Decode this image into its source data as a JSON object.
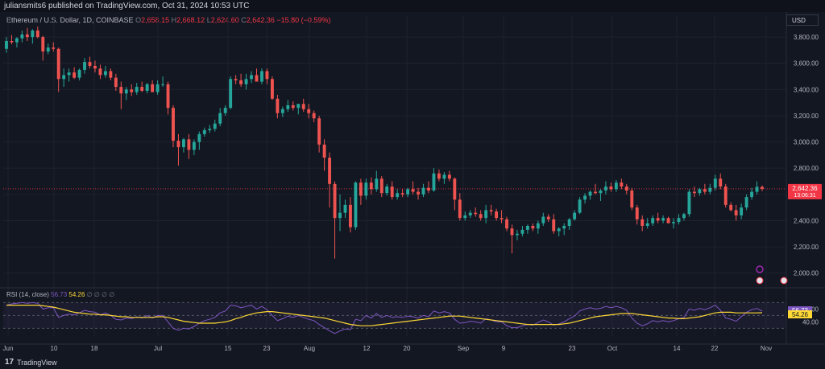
{
  "header": {
    "published": "juliansmits6 published on TradingView.com, Oct 31, 2024 10:53 UTC"
  },
  "legend": {
    "symbol": "Ethereum / U.S. Dollar, 1D, COINBASE",
    "o_label": "O",
    "o_value": "2,658.15",
    "h_label": "H",
    "h_value": "2,668.12",
    "l_label": "L",
    "l_value": "2,624.60",
    "c_label": "C",
    "c_value": "2,642.36",
    "change": "−15.80 (−0.59%)"
  },
  "currency": "USD",
  "price_tag": {
    "price": "2,642.36",
    "countdown": "13:06:31"
  },
  "rsi_tags": {
    "rsi": "56.73",
    "ma": "54.26"
  },
  "rsi_legend": {
    "title": "RSI (14, close)",
    "rsi_value": "56.73",
    "ma_value": "54.26",
    "placeholders": "∅ ∅ ∅ ∅"
  },
  "footer": {
    "brand": "TradingView"
  },
  "colors": {
    "bull": "#26a69a",
    "bear": "#ef5350",
    "rsi": "#7e57c2",
    "rsi_ma": "#fdd835",
    "grid": "#1e222d",
    "bg": "#131722",
    "price_line": "#f23645"
  },
  "chart_data": [
    {
      "type": "candlestick",
      "title": "Ethereum / U.S. Dollar, 1D, COINBASE",
      "y_ticks": [
        "3,800.00",
        "3,600.00",
        "3,400.00",
        "3,200.00",
        "3,000.00",
        "2,800.00",
        "2,600.00",
        "2,400.00",
        "2,200.00",
        "2,000.00"
      ],
      "ylim": [
        1900,
        3960
      ],
      "x_ticks": [
        "Jun",
        "10",
        "18",
        "Jul",
        "15",
        "23",
        "Aug",
        "12",
        "20",
        "Sep",
        "9",
        "23",
        "Oct",
        "14",
        "22",
        "Nov"
      ],
      "last_price": 2642.36,
      "candles": [
        [
          3710,
          3800,
          3680,
          3770
        ],
        [
          3770,
          3815,
          3745,
          3760
        ],
        [
          3760,
          3800,
          3720,
          3790
        ],
        [
          3790,
          3850,
          3760,
          3820
        ],
        [
          3820,
          3870,
          3770,
          3800
        ],
        [
          3800,
          3860,
          3750,
          3850
        ],
        [
          3850,
          3880,
          3790,
          3800
        ],
        [
          3800,
          3810,
          3620,
          3690
        ],
        [
          3690,
          3750,
          3670,
          3720
        ],
        [
          3720,
          3760,
          3690,
          3710
        ],
        [
          3710,
          3720,
          3380,
          3480
        ],
        [
          3480,
          3560,
          3420,
          3510
        ],
        [
          3510,
          3560,
          3460,
          3530
        ],
        [
          3530,
          3570,
          3480,
          3490
        ],
        [
          3490,
          3560,
          3470,
          3550
        ],
        [
          3550,
          3640,
          3520,
          3610
        ],
        [
          3610,
          3650,
          3560,
          3580
        ],
        [
          3580,
          3620,
          3530,
          3560
        ],
        [
          3560,
          3590,
          3480,
          3510
        ],
        [
          3510,
          3580,
          3490,
          3540
        ],
        [
          3540,
          3560,
          3470,
          3490
        ],
        [
          3490,
          3520,
          3390,
          3420
        ],
        [
          3420,
          3460,
          3250,
          3370
        ],
        [
          3370,
          3420,
          3320,
          3400
        ],
        [
          3400,
          3440,
          3350,
          3380
        ],
        [
          3380,
          3450,
          3360,
          3420
        ],
        [
          3420,
          3460,
          3380,
          3390
        ],
        [
          3390,
          3450,
          3370,
          3440
        ],
        [
          3440,
          3470,
          3400,
          3380
        ],
        [
          3380,
          3470,
          3360,
          3440
        ],
        [
          3440,
          3500,
          3420,
          3440
        ],
        [
          3440,
          3460,
          3210,
          3260
        ],
        [
          3260,
          3280,
          2960,
          3010
        ],
        [
          3010,
          3060,
          2820,
          2960
        ],
        [
          2960,
          3030,
          2920,
          3020
        ],
        [
          3020,
          3060,
          2870,
          2940
        ],
        [
          2940,
          3020,
          2900,
          3000
        ],
        [
          3000,
          3080,
          2940,
          3060
        ],
        [
          3060,
          3110,
          3040,
          3090
        ],
        [
          3090,
          3130,
          3070,
          3100
        ],
        [
          3100,
          3170,
          3080,
          3140
        ],
        [
          3140,
          3260,
          3120,
          3220
        ],
        [
          3220,
          3280,
          3200,
          3260
        ],
        [
          3260,
          3500,
          3250,
          3480
        ],
        [
          3480,
          3510,
          3440,
          3470
        ],
        [
          3470,
          3520,
          3420,
          3440
        ],
        [
          3440,
          3520,
          3400,
          3480
        ],
        [
          3480,
          3540,
          3450,
          3510
        ],
        [
          3510,
          3560,
          3480,
          3460
        ],
        [
          3460,
          3560,
          3440,
          3540
        ],
        [
          3540,
          3560,
          3440,
          3480
        ],
        [
          3480,
          3500,
          3320,
          3330
        ],
        [
          3330,
          3360,
          3180,
          3220
        ],
        [
          3220,
          3270,
          3190,
          3250
        ],
        [
          3250,
          3320,
          3230,
          3280
        ],
        [
          3280,
          3310,
          3240,
          3260
        ],
        [
          3260,
          3290,
          3210,
          3290
        ],
        [
          3290,
          3330,
          3230,
          3250
        ],
        [
          3250,
          3290,
          3180,
          3220
        ],
        [
          3220,
          3240,
          3150,
          3180
        ],
        [
          3180,
          3200,
          2920,
          2980
        ],
        [
          2980,
          3020,
          2780,
          2880
        ],
        [
          2880,
          2920,
          2500,
          2680
        ],
        [
          2680,
          2700,
          2110,
          2420
        ],
        [
          2420,
          2600,
          2320,
          2460
        ],
        [
          2460,
          2560,
          2420,
          2520
        ],
        [
          2520,
          2580,
          2310,
          2350
        ],
        [
          2350,
          2700,
          2330,
          2690
        ],
        [
          2690,
          2720,
          2520,
          2590
        ],
        [
          2590,
          2720,
          2560,
          2690
        ],
        [
          2690,
          2730,
          2600,
          2640
        ],
        [
          2640,
          2780,
          2620,
          2720
        ],
        [
          2720,
          2740,
          2580,
          2610
        ],
        [
          2610,
          2680,
          2590,
          2660
        ],
        [
          2660,
          2700,
          2560,
          2580
        ],
        [
          2580,
          2640,
          2560,
          2610
        ],
        [
          2610,
          2640,
          2580,
          2600
        ],
        [
          2600,
          2650,
          2580,
          2640
        ],
        [
          2640,
          2700,
          2600,
          2620
        ],
        [
          2620,
          2650,
          2560,
          2600
        ],
        [
          2600,
          2680,
          2580,
          2650
        ],
        [
          2650,
          2700,
          2610,
          2630
        ],
        [
          2630,
          2800,
          2620,
          2760
        ],
        [
          2760,
          2790,
          2700,
          2720
        ],
        [
          2720,
          2770,
          2680,
          2750
        ],
        [
          2750,
          2780,
          2700,
          2720
        ],
        [
          2720,
          2730,
          2480,
          2560
        ],
        [
          2560,
          2610,
          2400,
          2420
        ],
        [
          2420,
          2470,
          2400,
          2440
        ],
        [
          2440,
          2480,
          2420,
          2460
        ],
        [
          2460,
          2500,
          2430,
          2450
        ],
        [
          2450,
          2480,
          2400,
          2420
        ],
        [
          2420,
          2520,
          2380,
          2480
        ],
        [
          2480,
          2520,
          2440,
          2470
        ],
        [
          2470,
          2490,
          2400,
          2420
        ],
        [
          2420,
          2480,
          2380,
          2410
        ],
        [
          2410,
          2430,
          2320,
          2340
        ],
        [
          2340,
          2370,
          2150,
          2290
        ],
        [
          2290,
          2330,
          2250,
          2300
        ],
        [
          2300,
          2360,
          2280,
          2330
        ],
        [
          2330,
          2370,
          2300,
          2360
        ],
        [
          2360,
          2380,
          2320,
          2340
        ],
        [
          2340,
          2400,
          2300,
          2380
        ],
        [
          2380,
          2460,
          2360,
          2430
        ],
        [
          2430,
          2450,
          2390,
          2410
        ],
        [
          2410,
          2450,
          2300,
          2320
        ],
        [
          2320,
          2350,
          2280,
          2340
        ],
        [
          2340,
          2380,
          2290,
          2360
        ],
        [
          2360,
          2420,
          2330,
          2410
        ],
        [
          2410,
          2480,
          2400,
          2460
        ],
        [
          2460,
          2580,
          2450,
          2560
        ],
        [
          2560,
          2610,
          2530,
          2590
        ],
        [
          2590,
          2630,
          2560,
          2620
        ],
        [
          2620,
          2680,
          2600,
          2610
        ],
        [
          2610,
          2640,
          2550,
          2630
        ],
        [
          2630,
          2700,
          2600,
          2660
        ],
        [
          2660,
          2690,
          2620,
          2640
        ],
        [
          2640,
          2710,
          2620,
          2690
        ],
        [
          2690,
          2720,
          2640,
          2660
        ],
        [
          2660,
          2680,
          2600,
          2630
        ],
        [
          2630,
          2650,
          2480,
          2500
        ],
        [
          2500,
          2520,
          2370,
          2410
        ],
        [
          2410,
          2440,
          2320,
          2360
        ],
        [
          2360,
          2420,
          2340,
          2380
        ],
        [
          2380,
          2440,
          2360,
          2420
        ],
        [
          2420,
          2460,
          2380,
          2400
        ],
        [
          2400,
          2440,
          2380,
          2420
        ],
        [
          2420,
          2430,
          2390,
          2380
        ],
        [
          2380,
          2420,
          2340,
          2390
        ],
        [
          2390,
          2450,
          2370,
          2420
        ],
        [
          2420,
          2460,
          2400,
          2450
        ],
        [
          2450,
          2640,
          2430,
          2620
        ],
        [
          2620,
          2660,
          2580,
          2610
        ],
        [
          2610,
          2650,
          2590,
          2640
        ],
        [
          2640,
          2680,
          2600,
          2620
        ],
        [
          2620,
          2680,
          2600,
          2650
        ],
        [
          2650,
          2750,
          2630,
          2720
        ],
        [
          2720,
          2760,
          2640,
          2660
        ],
        [
          2660,
          2680,
          2500,
          2520
        ],
        [
          2520,
          2540,
          2470,
          2480
        ],
        [
          2480,
          2520,
          2400,
          2440
        ],
        [
          2440,
          2530,
          2410,
          2500
        ],
        [
          2500,
          2600,
          2480,
          2580
        ],
        [
          2580,
          2650,
          2560,
          2620
        ],
        [
          2620,
          2700,
          2600,
          2658
        ],
        [
          2658,
          2668,
          2625,
          2642
        ]
      ]
    },
    {
      "type": "line",
      "title": "RSI (14, close)",
      "y_ticks": [
        "60.00",
        "40.00"
      ],
      "ylim": [
        18,
        88
      ],
      "guides": [
        70,
        50,
        30
      ],
      "series": [
        {
          "name": "RSI",
          "values": [
            66,
            68,
            69,
            70,
            69,
            70,
            69,
            60,
            62,
            62,
            47,
            50,
            52,
            51,
            54,
            58,
            56,
            55,
            51,
            54,
            50,
            44,
            43,
            46,
            45,
            48,
            46,
            50,
            46,
            50,
            50,
            40,
            30,
            27,
            30,
            29,
            33,
            38,
            42,
            44,
            47,
            54,
            57,
            66,
            65,
            62,
            64,
            66,
            60,
            64,
            59,
            50,
            42,
            45,
            49,
            47,
            50,
            47,
            44,
            42,
            36,
            31,
            26,
            22,
            26,
            29,
            28,
            44,
            42,
            50,
            46,
            53,
            47,
            50,
            47,
            48,
            47,
            49,
            48,
            46,
            50,
            48,
            57,
            54,
            56,
            54,
            44,
            38,
            39,
            41,
            40,
            38,
            45,
            43,
            40,
            40,
            34,
            31,
            31,
            34,
            36,
            35,
            39,
            43,
            40,
            35,
            37,
            40,
            45,
            49,
            57,
            60,
            62,
            60,
            61,
            64,
            62,
            64,
            62,
            58,
            46,
            38,
            34,
            37,
            42,
            40,
            42,
            40,
            42,
            45,
            47,
            60,
            58,
            61,
            59,
            62,
            66,
            58,
            46,
            44,
            41,
            48,
            55,
            59,
            61,
            56.73
          ]
        },
        {
          "name": "RSI-based MA",
          "values": [
            66,
            66,
            66,
            66,
            66,
            66,
            66,
            65,
            64,
            63,
            61,
            59,
            57,
            55,
            54,
            53,
            52,
            52,
            51,
            51,
            50,
            49,
            48,
            48,
            47,
            47,
            47,
            47,
            47,
            48,
            48,
            47,
            45,
            43,
            41,
            40,
            39,
            38,
            38,
            38,
            38,
            39,
            40,
            42,
            45,
            47,
            50,
            52,
            54,
            55,
            56,
            56,
            55,
            54,
            53,
            52,
            51,
            50,
            49,
            48,
            47,
            46,
            44,
            42,
            40,
            38,
            36,
            35,
            34,
            34,
            34,
            35,
            36,
            37,
            38,
            39,
            40,
            41,
            42,
            43,
            44,
            45,
            46,
            47,
            48,
            49,
            49,
            49,
            48,
            47,
            46,
            45,
            44,
            43,
            42,
            41,
            40,
            39,
            38,
            37,
            36,
            36,
            36,
            36,
            36,
            36,
            36,
            37,
            38,
            40,
            42,
            44,
            46,
            48,
            49,
            50,
            51,
            52,
            53,
            53,
            53,
            52,
            51,
            50,
            49,
            48,
            47,
            46,
            46,
            45,
            45,
            46,
            47,
            48,
            50,
            52,
            54,
            55,
            55,
            55,
            54,
            54,
            54,
            54,
            54,
            54.26
          ]
        }
      ]
    }
  ]
}
